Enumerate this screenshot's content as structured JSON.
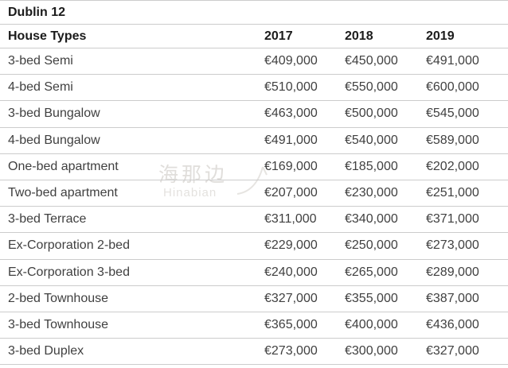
{
  "title": "Dublin 12",
  "watermark": {
    "cn_text": "海那边",
    "en_text": "Hinabian"
  },
  "table": {
    "columns": [
      "House Types",
      "2017",
      "2018",
      "2019"
    ],
    "rows": [
      {
        "type": "3-bed Semi",
        "prices": [
          "€409,000",
          "€450,000",
          "€491,000"
        ]
      },
      {
        "type": "4-bed Semi",
        "prices": [
          "€510,000",
          "€550,000",
          "€600,000"
        ]
      },
      {
        "type": "3-bed Bungalow",
        "prices": [
          "€463,000",
          "€500,000",
          "€545,000"
        ]
      },
      {
        "type": "4-bed Bungalow",
        "prices": [
          "€491,000",
          "€540,000",
          "€589,000"
        ]
      },
      {
        "type": "One-bed apartment",
        "prices": [
          "€169,000",
          "€185,000",
          "€202,000"
        ]
      },
      {
        "type": "Two-bed apartment",
        "prices": [
          "€207,000",
          "€230,000",
          "€251,000"
        ]
      },
      {
        "type": "3-bed Terrace",
        "prices": [
          "€311,000",
          "€340,000",
          "€371,000"
        ]
      },
      {
        "type": "Ex-Corporation 2-bed",
        "prices": [
          "€229,000",
          "€250,000",
          "€273,000"
        ]
      },
      {
        "type": "Ex-Corporation 3-bed",
        "prices": [
          "€240,000",
          "€265,000",
          "€289,000"
        ]
      },
      {
        "type": "2-bed Townhouse",
        "prices": [
          "€327,000",
          "€355,000",
          "€387,000"
        ]
      },
      {
        "type": "3-bed Townhouse",
        "prices": [
          "€365,000",
          "€400,000",
          "€436,000"
        ]
      },
      {
        "type": "3-bed Duplex",
        "prices": [
          "€273,000",
          "€300,000",
          "€327,000"
        ]
      }
    ]
  },
  "colors": {
    "background": "#ffffff",
    "border": "#cccccc",
    "heading_text": "#1b1b1b",
    "cell_text": "#404040",
    "watermark": "#e0dedb"
  },
  "chart_data": {
    "type": "table",
    "title": "Dublin 12",
    "categories": [
      "3-bed Semi",
      "4-bed Semi",
      "3-bed Bungalow",
      "4-bed Bungalow",
      "One-bed apartment",
      "Two-bed apartment",
      "3-bed Terrace",
      "Ex-Corporation 2-bed",
      "Ex-Corporation 3-bed",
      "2-bed Townhouse",
      "3-bed Townhouse",
      "3-bed Duplex"
    ],
    "series": [
      {
        "name": "2017",
        "values": [
          409000,
          510000,
          463000,
          491000,
          169000,
          207000,
          311000,
          229000,
          240000,
          327000,
          365000,
          273000
        ]
      },
      {
        "name": "2018",
        "values": [
          450000,
          550000,
          500000,
          540000,
          185000,
          230000,
          340000,
          250000,
          265000,
          355000,
          400000,
          300000
        ]
      },
      {
        "name": "2019",
        "values": [
          491000,
          600000,
          545000,
          589000,
          202000,
          251000,
          371000,
          273000,
          289000,
          387000,
          436000,
          327000
        ]
      }
    ],
    "currency": "EUR",
    "xlabel": "House Types",
    "ylabel": ""
  }
}
